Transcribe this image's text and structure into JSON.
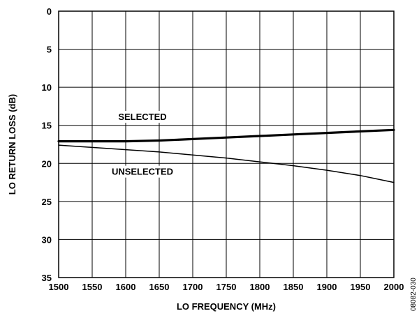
{
  "chart_data": {
    "type": "line",
    "xlabel": "LO FREQUENCY (MHz)",
    "ylabel": "LO RETURN LOSS (dB)",
    "xlim": [
      1500,
      2000
    ],
    "ylim": [
      0,
      35
    ],
    "y_inverted": true,
    "grid": true,
    "x_ticks": [
      1500,
      1550,
      1600,
      1650,
      1700,
      1750,
      1800,
      1850,
      1900,
      1950,
      2000
    ],
    "y_ticks": [
      0,
      5,
      10,
      15,
      20,
      25,
      30,
      35
    ],
    "series": [
      {
        "name": "SELECTED",
        "line": "thick",
        "x": [
          1500,
          1550,
          1600,
          1650,
          1700,
          1750,
          1800,
          1850,
          1900,
          1950,
          2000
        ],
        "y": [
          17.1,
          17.1,
          17.1,
          17.0,
          16.8,
          16.6,
          16.4,
          16.2,
          16.0,
          15.8,
          15.6
        ]
      },
      {
        "name": "UNSELECTED",
        "line": "thin",
        "x": [
          1500,
          1550,
          1600,
          1650,
          1700,
          1750,
          1800,
          1850,
          1900,
          1950,
          2000
        ],
        "y": [
          17.6,
          17.9,
          18.2,
          18.5,
          18.9,
          19.3,
          19.8,
          20.3,
          20.9,
          21.6,
          22.5
        ]
      }
    ],
    "figure_id": "08082-030"
  }
}
